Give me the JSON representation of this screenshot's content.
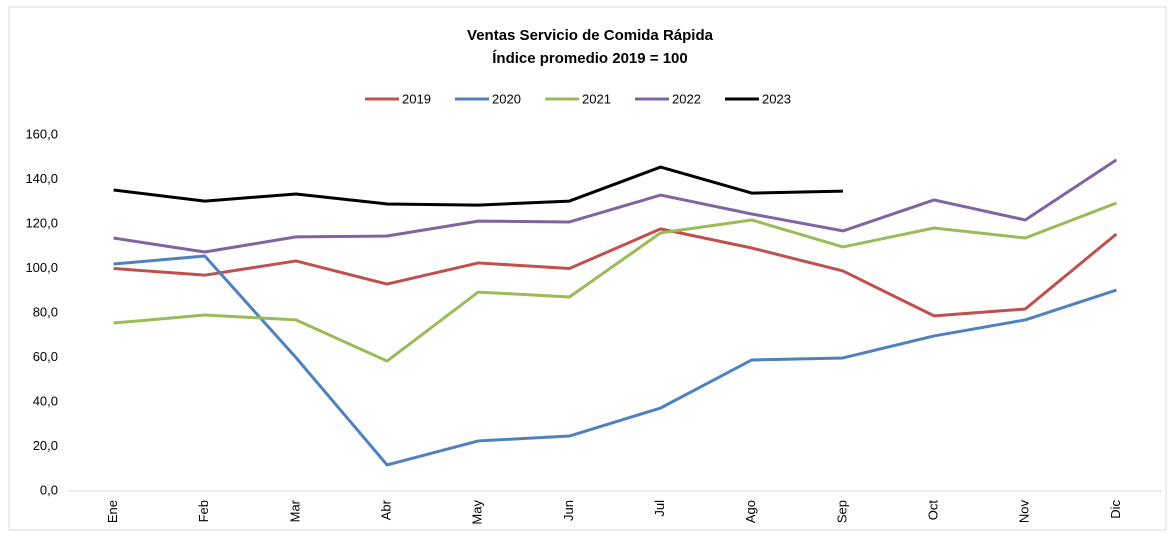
{
  "chart_data": {
    "type": "line",
    "title": "Ventas Servicio de Comida Rápida",
    "subtitle": "Índice promedio 2019 = 100",
    "categories": [
      "Ene",
      "Feb",
      "Mar",
      "Abr",
      "May",
      "Jun",
      "Jul",
      "Ago",
      "Sep",
      "Oct",
      "Nov",
      "Dic"
    ],
    "series": [
      {
        "name": "2019",
        "color": "#c0504d",
        "values": [
          100,
          97,
          103.4,
          93,
          102.5,
          100,
          117.8,
          109.2,
          98.9,
          78.7,
          81.8,
          115.5
        ]
      },
      {
        "name": "2020",
        "color": "#4f81bd",
        "values": [
          102,
          105.6,
          60,
          11.7,
          22.5,
          24.7,
          37.3,
          58.9,
          59.8,
          69.7,
          76.9,
          90.3
        ]
      },
      {
        "name": "2021",
        "color": "#9bbb59",
        "values": [
          75.5,
          79.1,
          76.9,
          58.4,
          89.4,
          87.2,
          116,
          121.8,
          109.7,
          118.2,
          113.7,
          129.4
        ]
      },
      {
        "name": "2022",
        "color": "#8064a2",
        "values": [
          113.7,
          107.4,
          114.2,
          114.6,
          121.3,
          120.9,
          133,
          124.5,
          116.9,
          130.8,
          121.8,
          148.8
        ]
      },
      {
        "name": "2023",
        "color": "#000000",
        "values": [
          135.3,
          130.3,
          133.5,
          129,
          128.5,
          130.3,
          145.6,
          133.9,
          134.8,
          null,
          null,
          null
        ]
      }
    ],
    "ylim": [
      0,
      160
    ],
    "yticks": [
      {
        "value": 0,
        "label": "0,0"
      },
      {
        "value": 20,
        "label": "20,0"
      },
      {
        "value": 40,
        "label": "40,0"
      },
      {
        "value": 60,
        "label": "60,0"
      },
      {
        "value": 80,
        "label": "80,0"
      },
      {
        "value": 100,
        "label": "100,0"
      },
      {
        "value": 120,
        "label": "120,0"
      },
      {
        "value": 140,
        "label": "140,0"
      },
      {
        "value": 160,
        "label": "160,0"
      }
    ],
    "grid": false,
    "legend": "top"
  }
}
